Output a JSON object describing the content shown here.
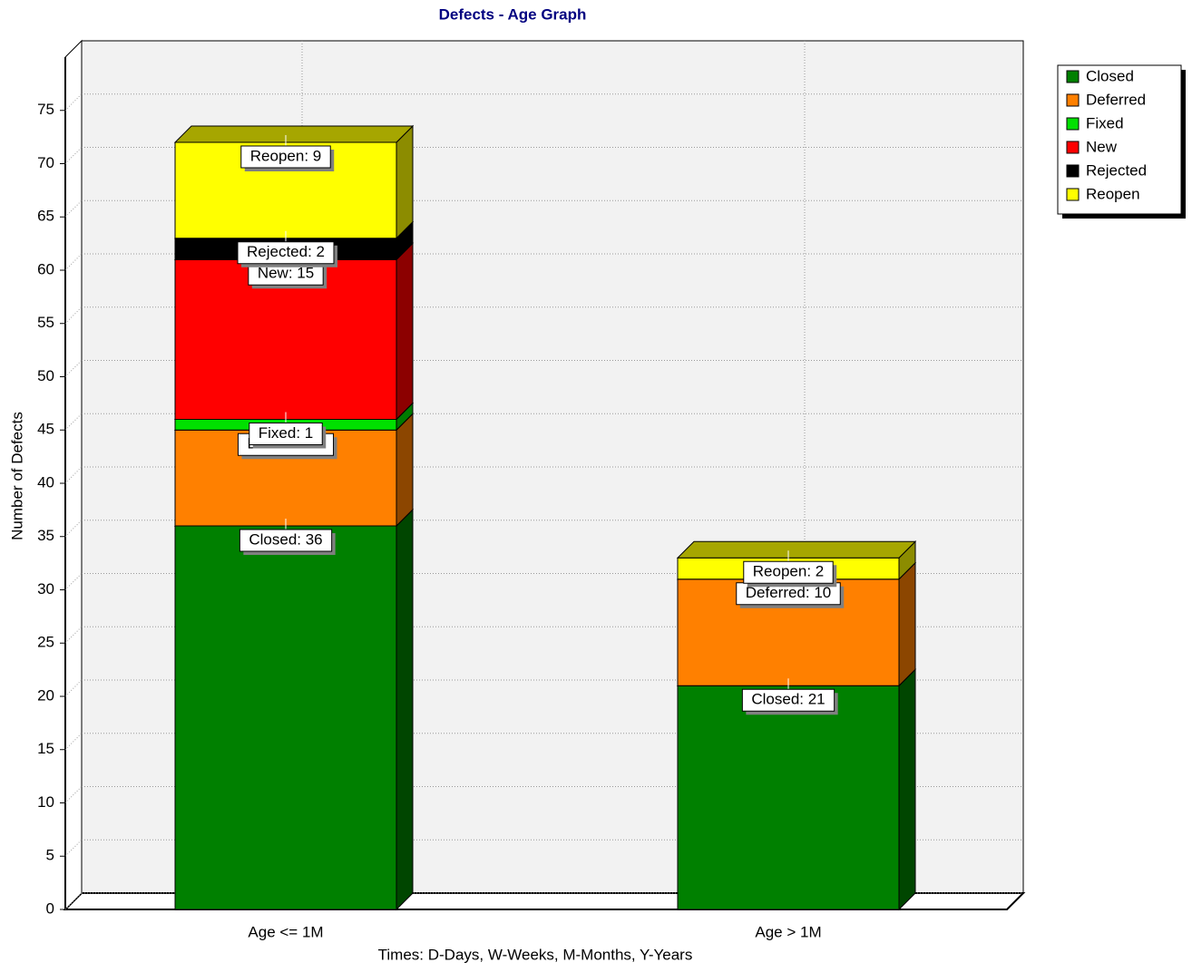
{
  "chart_data": {
    "type": "bar",
    "stacked": true,
    "title": "Defects - Age Graph",
    "x_label": "Times: D-Days, W-Weeks, M-Months, Y-Years",
    "y_label": "Number of Defects",
    "categories": [
      "Age <= 1M",
      "Age > 1M"
    ],
    "series": [
      {
        "name": "Closed",
        "color": "#008000",
        "values": [
          36,
          21
        ],
        "value_labels": [
          "Closed: 36",
          "Closed: 21"
        ]
      },
      {
        "name": "Deferred",
        "color": "#ff8000",
        "values": [
          9,
          10
        ],
        "value_labels": [
          "Deferred: 9",
          "Deferred: 10"
        ]
      },
      {
        "name": "Fixed",
        "color": "#00e000",
        "values": [
          1,
          0
        ],
        "value_labels": [
          "Fixed: 1",
          null
        ]
      },
      {
        "name": "New",
        "color": "#ff0000",
        "values": [
          15,
          0
        ],
        "value_labels": [
          "New: 15",
          null
        ]
      },
      {
        "name": "Rejected",
        "color": "#000000",
        "values": [
          2,
          0
        ],
        "value_labels": [
          "Rejected: 2",
          null
        ]
      },
      {
        "name": "Reopen",
        "color": "#ffff00",
        "values": [
          9,
          2
        ],
        "value_labels": [
          "Reopen: 9",
          "Reopen: 2"
        ]
      }
    ],
    "ylim": [
      0,
      80
    ],
    "yticks": [
      0,
      5,
      10,
      15,
      20,
      25,
      30,
      35,
      40,
      45,
      50,
      55,
      60,
      65,
      70,
      75
    ],
    "grid": true,
    "legend": "top-right"
  }
}
